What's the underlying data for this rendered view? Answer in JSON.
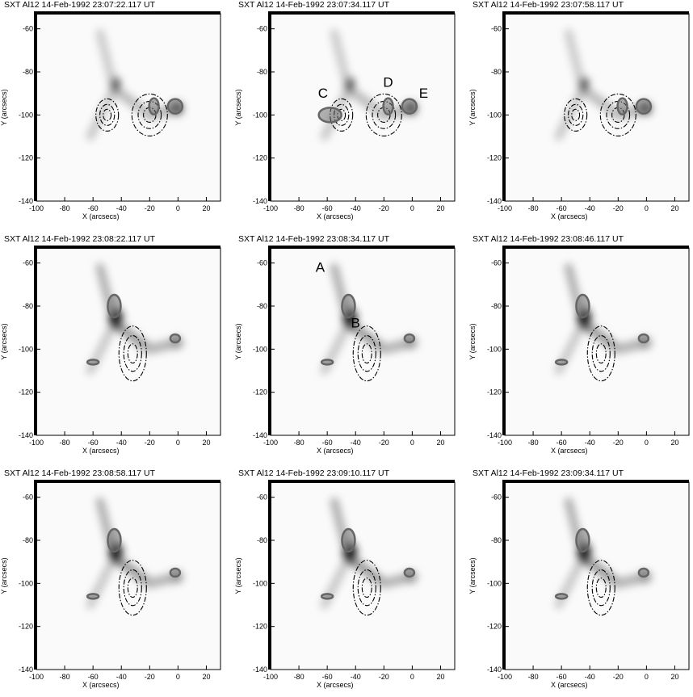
{
  "chart_data": [
    {
      "type": "image",
      "title": "SXT Al12   14-Feb-1992 23:07:22.117 UT",
      "xlabel": "X (arcsecs)",
      "ylabel": "Y (arcsecs)",
      "xlim": [
        -100,
        30
      ],
      "ylim": [
        -140,
        -53
      ],
      "xticks": [
        -100,
        -80,
        -60,
        -40,
        -20,
        0,
        20
      ],
      "yticks": [
        -140,
        -120,
        -100,
        -80,
        -60
      ]
    },
    {
      "type": "image",
      "title": "SXT Al12   14-Feb-1992 23:07:34.117 UT",
      "xlabel": "X (arcsecs)",
      "ylabel": "Y (arcsecs)",
      "xlim": [
        -100,
        30
      ],
      "ylim": [
        -140,
        -53
      ],
      "xticks": [
        -100,
        -80,
        -60,
        -40,
        -20,
        0,
        20
      ],
      "yticks": [
        -140,
        -120,
        -100,
        -80,
        -60
      ],
      "annotations": [
        "C",
        "D",
        "E"
      ]
    },
    {
      "type": "image",
      "title": "SXT Al12   14-Feb-1992 23:07:58.117 UT",
      "xlabel": "X (arcsecs)",
      "ylabel": "Y (arcsecs)",
      "xlim": [
        -100,
        30
      ],
      "ylim": [
        -140,
        -53
      ],
      "xticks": [
        -100,
        -80,
        -60,
        -40,
        -20,
        0,
        20
      ],
      "yticks": [
        -140,
        -120,
        -100,
        -80,
        -60
      ]
    },
    {
      "type": "image",
      "title": "SXT Al12   14-Feb-1992 23:08:22.117 UT",
      "xlabel": "X (arcsecs)",
      "ylabel": "Y (arcsecs)",
      "xlim": [
        -100,
        30
      ],
      "ylim": [
        -140,
        -53
      ],
      "xticks": [
        -100,
        -80,
        -60,
        -40,
        -20,
        0,
        20
      ],
      "yticks": [
        -140,
        -120,
        -100,
        -80,
        -60
      ]
    },
    {
      "type": "image",
      "title": "SXT Al12   14-Feb-1992 23:08:34.117 UT",
      "xlabel": "X (arcsecs)",
      "ylabel": "Y (arcsecs)",
      "xlim": [
        -100,
        30
      ],
      "ylim": [
        -140,
        -53
      ],
      "xticks": [
        -100,
        -80,
        -60,
        -40,
        -20,
        0,
        20
      ],
      "yticks": [
        -140,
        -120,
        -100,
        -80,
        -60
      ],
      "annotations": [
        "A",
        "B"
      ]
    },
    {
      "type": "image",
      "title": "SXT Al12   14-Feb-1992 23:08:46.117 UT",
      "xlabel": "X (arcsecs)",
      "ylabel": "Y (arcsecs)",
      "xlim": [
        -100,
        30
      ],
      "ylim": [
        -140,
        -53
      ],
      "xticks": [
        -100,
        -80,
        -60,
        -40,
        -20,
        0,
        20
      ],
      "yticks": [
        -140,
        -120,
        -100,
        -80,
        -60
      ]
    },
    {
      "type": "image",
      "title": "SXT Al12   14-Feb-1992 23:08:58.117 UT",
      "xlabel": "X (arcsecs)",
      "ylabel": "Y (arcsecs)",
      "xlim": [
        -100,
        30
      ],
      "ylim": [
        -140,
        -53
      ],
      "xticks": [
        -100,
        -80,
        -60,
        -40,
        -20,
        0,
        20
      ],
      "yticks": [
        -140,
        -120,
        -100,
        -80,
        -60
      ]
    },
    {
      "type": "image",
      "title": "SXT Al12   14-Feb-1992 23:09:10.117 UT",
      "xlabel": "X (arcsecs)",
      "ylabel": "Y (arcsecs)",
      "xlim": [
        -100,
        30
      ],
      "ylim": [
        -140,
        -53
      ],
      "xticks": [
        -100,
        -80,
        -60,
        -40,
        -20,
        0,
        20
      ],
      "yticks": [
        -140,
        -120,
        -100,
        -80,
        -60
      ]
    },
    {
      "type": "image",
      "title": "SXT Al12   14-Feb-1992 23:09:34.117 UT",
      "xlabel": "X (arcsecs)",
      "ylabel": "Y (arcsecs)",
      "xlim": [
        -100,
        30
      ],
      "ylim": [
        -140,
        -53
      ],
      "xticks": [
        -100,
        -80,
        -60,
        -40,
        -20,
        0,
        20
      ],
      "yticks": [
        -140,
        -120,
        -100,
        -80,
        -60
      ]
    }
  ]
}
